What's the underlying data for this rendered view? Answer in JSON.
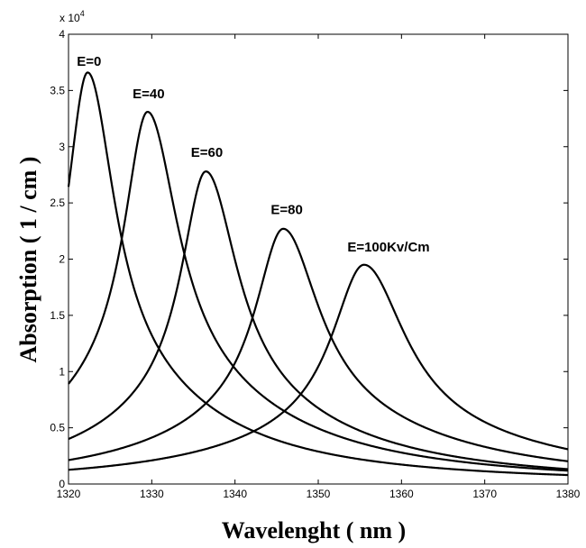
{
  "chart_data": {
    "type": "line",
    "title": "",
    "xlabel": "Wavelenght  ( nm )",
    "ylabel": "Absorption  ( 1 / cm )",
    "y_exponent_label": "x 10",
    "y_exponent_power": "4",
    "xlim": [
      1320,
      1380
    ],
    "ylim": [
      0,
      4
    ],
    "xticks": [
      1320,
      1330,
      1340,
      1350,
      1360,
      1370,
      1380
    ],
    "yticks": [
      0,
      0.5,
      1,
      1.5,
      2,
      2.5,
      3,
      3.5,
      4
    ],
    "grid": false,
    "series": [
      {
        "peak_x": 1322.3,
        "peak_y": 3.66,
        "width": 3.9,
        "tail": 0.26
      },
      {
        "peak_x": 1329.5,
        "peak_y": 3.31,
        "width": 4.4,
        "tail": 0.27
      },
      {
        "peak_x": 1336.5,
        "peak_y": 2.78,
        "width": 4.6,
        "tail": 0.25
      },
      {
        "peak_x": 1345.8,
        "peak_y": 2.27,
        "width": 5.2,
        "tail": 0.26
      },
      {
        "peak_x": 1355.5,
        "peak_y": 1.95,
        "width": 6.0,
        "tail": 0.23
      }
    ],
    "annotations": [
      {
        "text": "E=0",
        "x": 1321.0,
        "y": 3.72
      },
      {
        "text": "E=40",
        "x": 1327.7,
        "y": 3.43
      },
      {
        "text": "E=60",
        "x": 1334.7,
        "y": 2.91
      },
      {
        "text": "E=80",
        "x": 1344.3,
        "y": 2.4
      },
      {
        "text": "E=100Kv/Cm",
        "x": 1353.5,
        "y": 2.07
      }
    ]
  }
}
